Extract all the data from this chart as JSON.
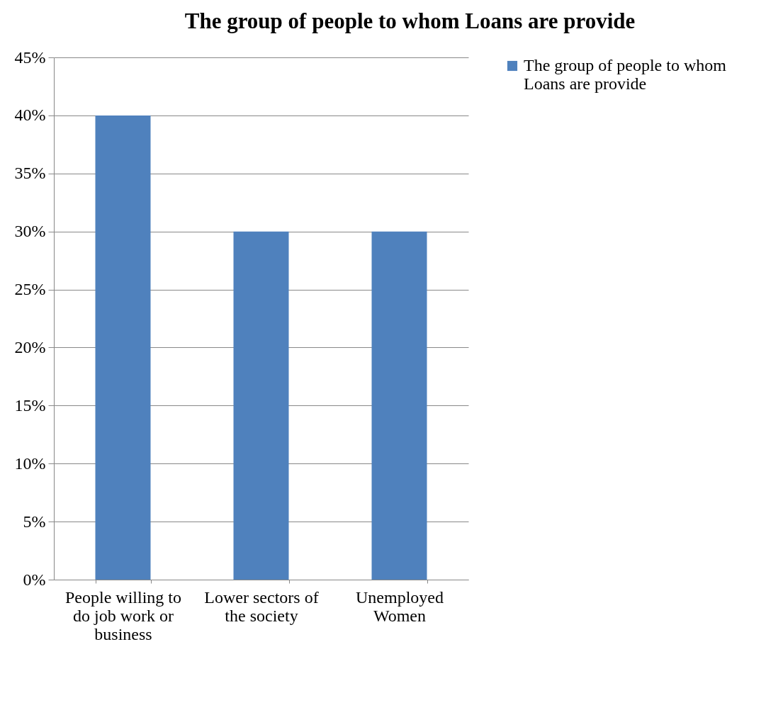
{
  "chart_data": {
    "type": "bar",
    "title": "The group of people to whom Loans are provide",
    "categories": [
      "People willing to do  job work or business",
      "Lower sectors of the society",
      "Unemployed Women"
    ],
    "series": [
      {
        "name": "The group of people to whom Loans are provide",
        "color": "#4f81bd",
        "values": [
          40,
          30,
          30
        ]
      }
    ],
    "ylim": [
      0,
      45
    ],
    "yticks": [
      {
        "value": 0,
        "label": "0%"
      },
      {
        "value": 5,
        "label": "5%"
      },
      {
        "value": 10,
        "label": "10%"
      },
      {
        "value": 15,
        "label": "15%"
      },
      {
        "value": 20,
        "label": "20%"
      },
      {
        "value": 25,
        "label": "25%"
      },
      {
        "value": 30,
        "label": "30%"
      },
      {
        "value": 35,
        "label": "35%"
      },
      {
        "value": 40,
        "label": "40%"
      },
      {
        "value": 45,
        "label": "45%"
      }
    ],
    "grid": "y",
    "legend": "right"
  }
}
